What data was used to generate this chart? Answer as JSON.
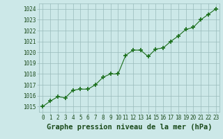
{
  "x": [
    0,
    1,
    2,
    3,
    4,
    5,
    6,
    7,
    8,
    9,
    10,
    11,
    12,
    13,
    14,
    15,
    16,
    17,
    18,
    19,
    20,
    21,
    22,
    23
  ],
  "y": [
    1015.0,
    1015.5,
    1015.9,
    1015.8,
    1016.5,
    1016.6,
    1016.6,
    1017.0,
    1017.7,
    1018.0,
    1018.0,
    1019.7,
    1020.2,
    1020.2,
    1019.6,
    1020.3,
    1020.4,
    1021.0,
    1021.5,
    1022.1,
    1022.3,
    1023.0,
    1023.5,
    1024.0
  ],
  "ylim": [
    1014.5,
    1024.5
  ],
  "yticks": [
    1015,
    1016,
    1017,
    1018,
    1019,
    1020,
    1021,
    1022,
    1023,
    1024
  ],
  "xticks": [
    0,
    1,
    2,
    3,
    4,
    5,
    6,
    7,
    8,
    9,
    10,
    11,
    12,
    13,
    14,
    15,
    16,
    17,
    18,
    19,
    20,
    21,
    22,
    23
  ],
  "xlabel": "Graphe pression niveau de la mer (hPa)",
  "line_color": "#1a6e1a",
  "marker_color": "#1a6e1a",
  "bg_color": "#cce8e8",
  "grid_color": "#99bbbb",
  "text_color": "#1a4a1a",
  "tick_fontsize": 5.5,
  "xlabel_fontsize": 7.5
}
